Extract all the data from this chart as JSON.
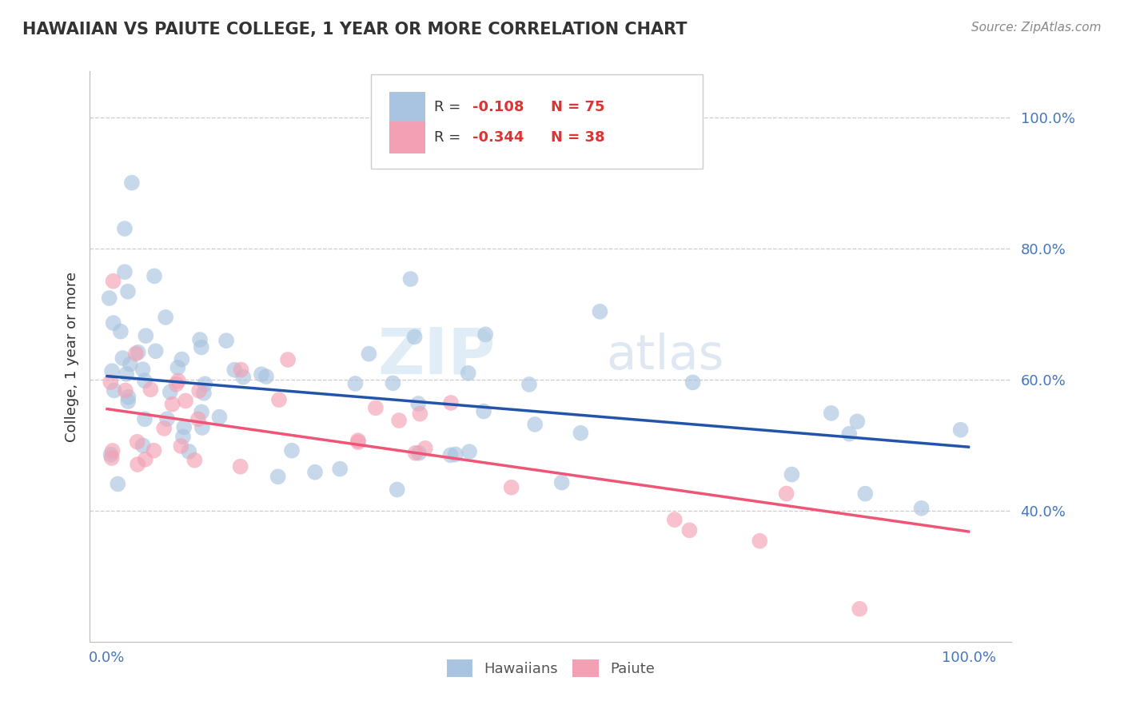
{
  "title": "HAWAIIAN VS PAIUTE COLLEGE, 1 YEAR OR MORE CORRELATION CHART",
  "source_text": "Source: ZipAtlas.com",
  "ylabel": "College, 1 year or more",
  "hawaiian_color": "#a8c4e0",
  "paiute_color": "#f4a0b4",
  "hawaiian_line_color": "#2255aa",
  "paiute_line_color": "#ee5577",
  "grid_color": "#cccccc",
  "background_color": "#ffffff",
  "watermark_zip": "ZIP",
  "watermark_atlas": "atlas",
  "legend_r1": "R = -0.108",
  "legend_n1": "N = 75",
  "legend_r2": "R = -0.344",
  "legend_n2": "N = 38",
  "hawaiian_line_x0": 0.0,
  "hawaiian_line_y0": 0.605,
  "hawaiian_line_x1": 1.0,
  "hawaiian_line_y1": 0.497,
  "paiute_line_x0": 0.0,
  "paiute_line_y0": 0.555,
  "paiute_line_x1": 1.0,
  "paiute_line_y1": 0.368,
  "ylim_min": 0.2,
  "ylim_max": 1.07,
  "xlim_min": -0.02,
  "xlim_max": 1.05,
  "yticks": [
    0.4,
    0.6,
    0.8,
    1.0
  ],
  "ytick_labels": [
    "40.0%",
    "60.0%",
    "80.0%",
    "100.0%"
  ],
  "xticks": [
    0.0,
    1.0
  ],
  "xtick_labels": [
    "0.0%",
    "100.0%"
  ]
}
